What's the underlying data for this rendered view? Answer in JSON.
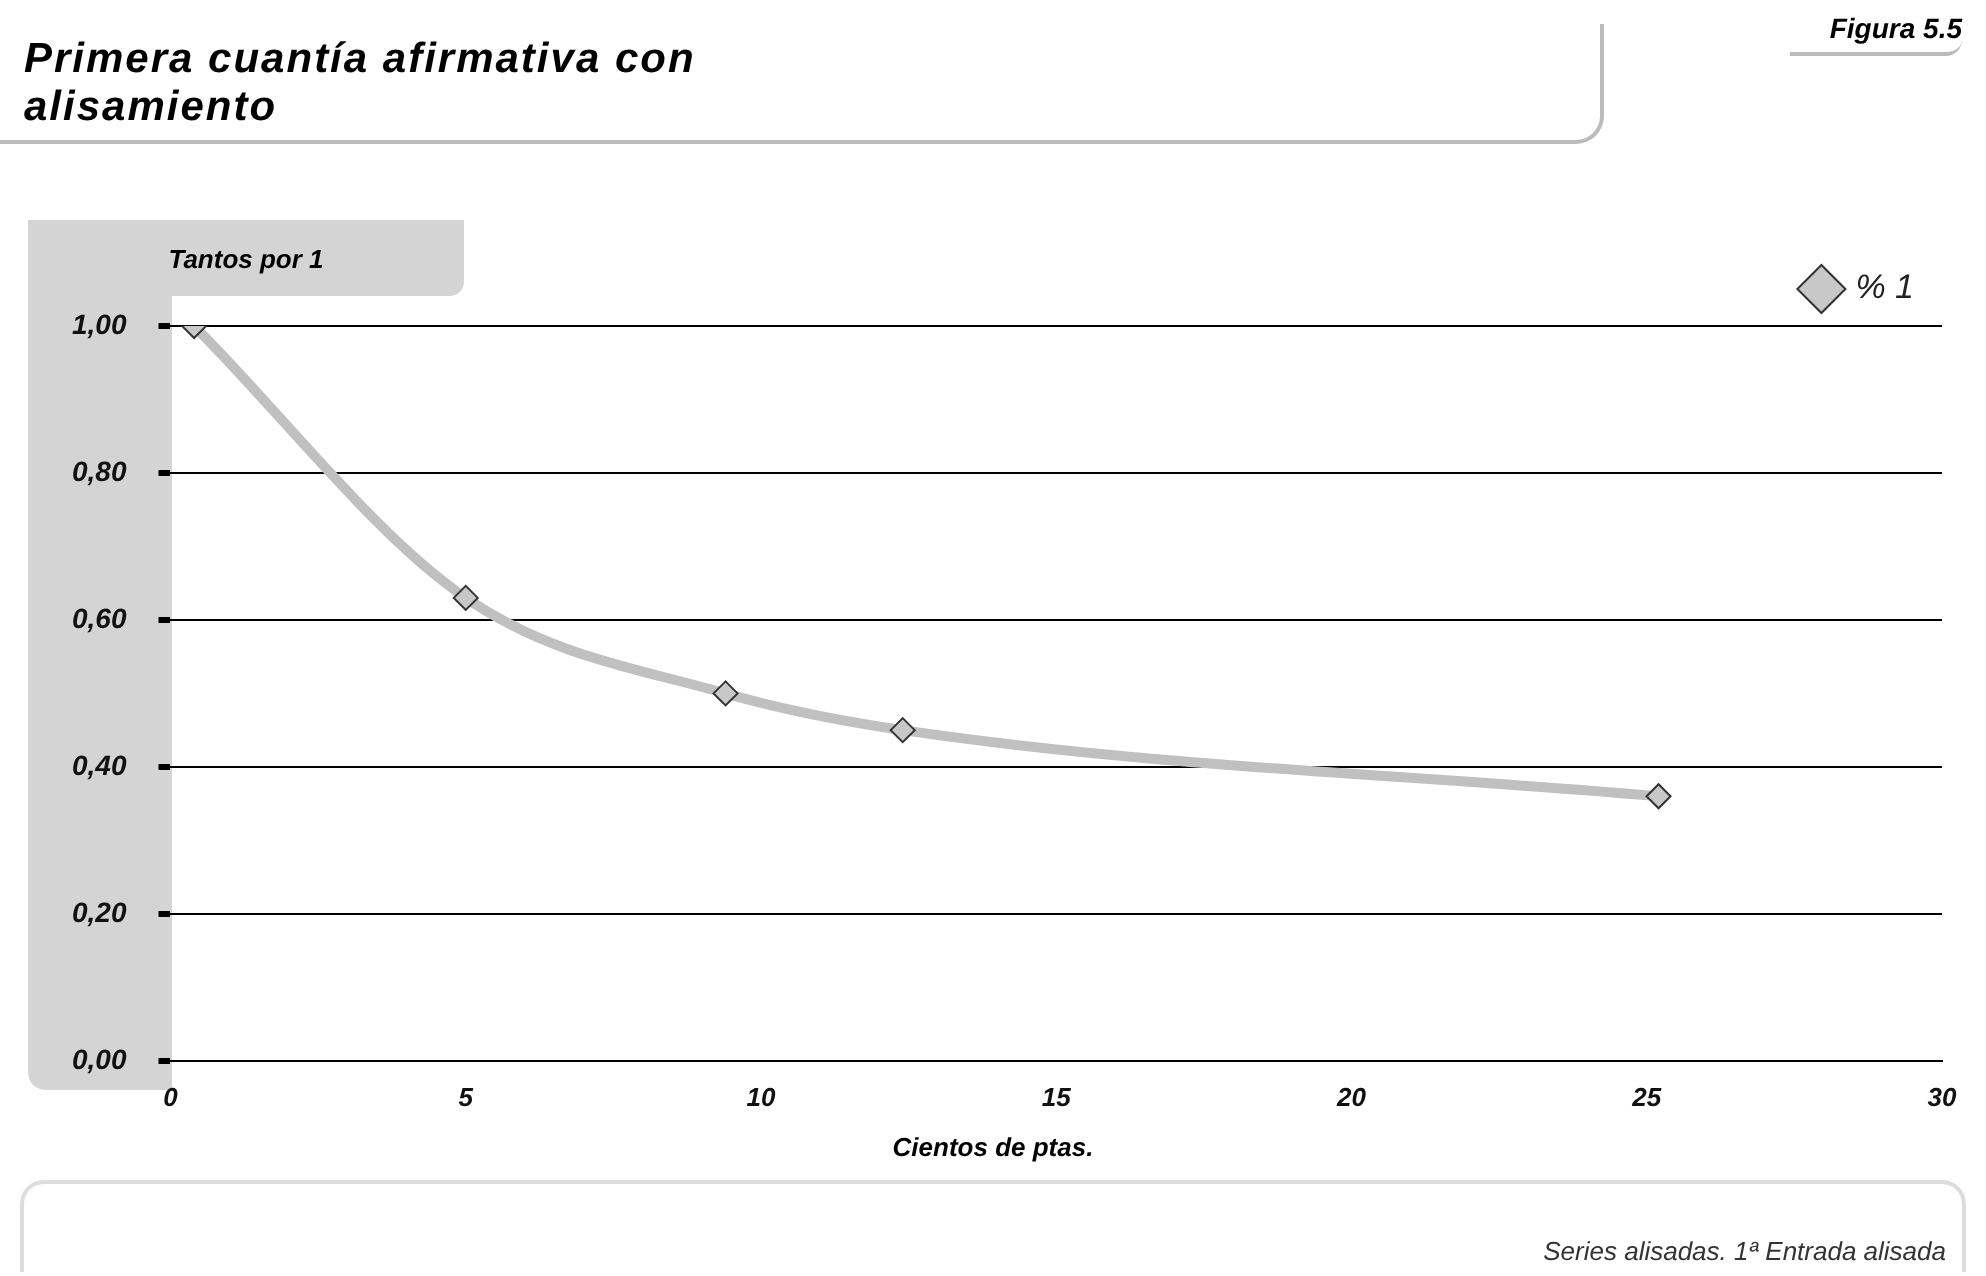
{
  "chart_data": {
    "type": "line",
    "title": "Primera cuantía afirmativa con alisamiento",
    "subtitle": "Figura 5.5",
    "ylabel": "Tantos por 1",
    "xlabel": "Cientos de ptas.",
    "annotations": [
      "Series alisadas. 1ª Entrada alisada"
    ],
    "x": [
      0.4,
      5,
      9.4,
      12.4,
      25.2
    ],
    "series": [
      {
        "name": "% 1",
        "color": "#c0c0c0",
        "values": [
          1.0,
          0.63,
          0.5,
          0.45,
          0.36
        ]
      }
    ],
    "xlim": [
      0,
      30
    ],
    "xticks": [
      0,
      5,
      10,
      15,
      20,
      25,
      30
    ],
    "ylim": [
      0,
      1
    ],
    "yticks": [
      {
        "value": 0,
        "label": "0,00"
      },
      {
        "value": 0.2,
        "label": "0,20"
      },
      {
        "value": 0.4,
        "label": "0,40"
      },
      {
        "value": 0.6,
        "label": "0,60"
      },
      {
        "value": 0.8,
        "label": "0,80"
      },
      {
        "value": 1,
        "label": "1,00"
      }
    ],
    "grid": "y",
    "legend": "top right",
    "marker": "diamond",
    "line_style": "solid"
  }
}
